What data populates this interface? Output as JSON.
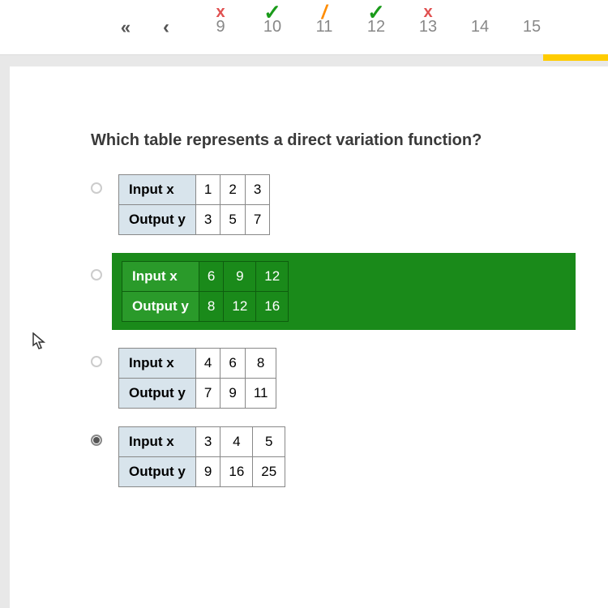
{
  "nav": {
    "first": "«",
    "prev": "‹",
    "items": [
      {
        "num": "9",
        "mark": "x",
        "cls": "mark-x"
      },
      {
        "num": "10",
        "mark": "✓",
        "cls": "mark-check"
      },
      {
        "num": "11",
        "mark": "/",
        "cls": "mark-slash"
      },
      {
        "num": "12",
        "mark": "✓",
        "cls": "mark-check"
      },
      {
        "num": "13",
        "mark": "x",
        "cls": "mark-x"
      },
      {
        "num": "14",
        "mark": "",
        "cls": ""
      },
      {
        "num": "15",
        "mark": "",
        "cls": ""
      }
    ]
  },
  "question": "Which table represents a direct variation function?",
  "labels": {
    "input": "Input x",
    "output": "Output y"
  },
  "options": [
    {
      "inputs": [
        "1",
        "2",
        "3"
      ],
      "outputs": [
        "3",
        "5",
        "7"
      ],
      "correct": false,
      "selected": false
    },
    {
      "inputs": [
        "6",
        "9",
        "12"
      ],
      "outputs": [
        "8",
        "12",
        "16"
      ],
      "correct": true,
      "selected": false
    },
    {
      "inputs": [
        "4",
        "6",
        "8"
      ],
      "outputs": [
        "7",
        "9",
        "11"
      ],
      "correct": false,
      "selected": false
    },
    {
      "inputs": [
        "3",
        "4",
        "5"
      ],
      "outputs": [
        "9",
        "16",
        "25"
      ],
      "correct": false,
      "selected": true
    }
  ],
  "colors": {
    "correct_bg": "#1a8a1a",
    "header_bg": "#d8e4ec",
    "page_bg": "#ffffff",
    "body_bg": "#e8e8e8"
  }
}
